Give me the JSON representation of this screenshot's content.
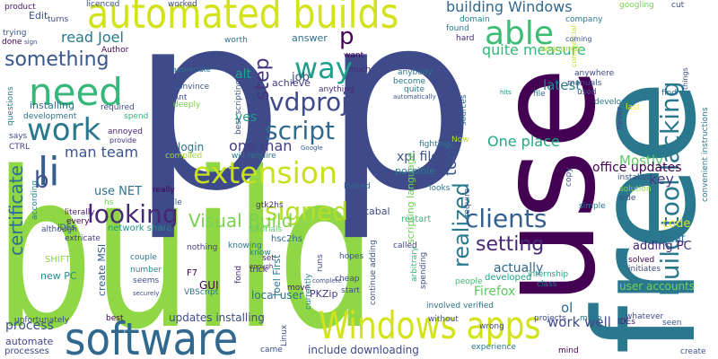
{
  "background": "#ffffff",
  "words": [
    {
      "text": "build",
      "color": "#8fd744"
    },
    {
      "text": "use",
      "color": "#440154"
    },
    {
      "text": "free",
      "color": "#2a788e"
    },
    {
      "text": "p",
      "color": "#3e4a89"
    },
    {
      "text": "p",
      "color": "#3e4a89"
    },
    {
      "text": "software",
      "color": "#31688e"
    },
    {
      "text": "automated builds",
      "color": "#d2e21b"
    },
    {
      "text": "need",
      "color": "#35b779"
    },
    {
      "text": "Windows apps",
      "color": "#d2e21b"
    },
    {
      "text": "build tool lacking",
      "color": "#2a788e"
    },
    {
      "text": "extension",
      "color": "#c8e020"
    },
    {
      "text": "able",
      "color": "#3dbc74"
    },
    {
      "text": "work",
      "color": "#2a788e"
    },
    {
      "text": "way",
      "color": "#1f9e89"
    },
    {
      "text": "li",
      "color": "#35608d"
    },
    {
      "text": "looking",
      "color": "#482677"
    },
    {
      "text": "clients",
      "color": "#35608d"
    },
    {
      "text": "vdproj",
      "color": "#3e4a89"
    },
    {
      "text": "script",
      "color": "#31688e"
    },
    {
      "text": "certificate",
      "color": "#2e6f8e"
    },
    {
      "text": "realized",
      "color": "#2a788e"
    },
    {
      "text": "signed",
      "color": "#b5de2b"
    },
    {
      "text": "step",
      "color": "#46337e"
    },
    {
      "text": "something",
      "color": "#39568c"
    },
    {
      "text": "Visual Build",
      "color": "#7ad151"
    },
    {
      "text": "setting",
      "color": "#482677"
    },
    {
      "text": "took",
      "color": "#39568c"
    },
    {
      "text": "b",
      "color": "#3b528b"
    },
    {
      "text": "p",
      "color": "#440154"
    },
    {
      "text": "read Joel",
      "color": "#2a788e"
    },
    {
      "text": "building Windows",
      "color": "#31688e"
    },
    {
      "text": "quite measure",
      "color": "#35b779"
    },
    {
      "text": "One place",
      "color": "#22a884"
    },
    {
      "text": "man team",
      "color": "#3b528b"
    },
    {
      "text": "one man",
      "color": "#433e85"
    },
    {
      "text": "process",
      "color": "#3b528b"
    },
    {
      "text": "latest",
      "color": "#26828e"
    },
    {
      "text": "work well",
      "color": "#3e4a89"
    },
    {
      "text": "Mostly",
      "color": "#5ec962"
    },
    {
      "text": "key",
      "color": "#453781"
    },
    {
      "text": "code",
      "color": "#e5e419"
    },
    {
      "text": "built",
      "color": "#2e6f8e"
    },
    {
      "text": "actually",
      "color": "#31688e"
    },
    {
      "text": "Firefox",
      "color": "#5ec962"
    },
    {
      "text": "adding PC",
      "color": "#482475"
    },
    {
      "text": "office updates",
      "color": "#440154"
    },
    {
      "text": "xpi file",
      "color": "#3b528b"
    },
    {
      "text": "job",
      "color": "#3e4a89"
    },
    {
      "text": "alt",
      "color": "#20a486"
    },
    {
      "text": "yes",
      "color": "#1f9e89"
    },
    {
      "text": "login",
      "color": "#2c728e"
    },
    {
      "text": "use NET",
      "color": "#2c728e"
    },
    {
      "text": "GUI",
      "color": "#440154"
    },
    {
      "text": "local user",
      "color": "#2c728e"
    },
    {
      "text": "updates installing",
      "color": "#3e4a89"
    },
    {
      "text": "include downloading",
      "color": "#3e4a89"
    },
    {
      "text": "user accounts",
      "color": "#73d056"
    },
    {
      "text": "Edit",
      "color": "#3b528b"
    },
    {
      "text": "installing",
      "color": "#2c728e"
    },
    {
      "text": "answer",
      "color": "#2c728e"
    },
    {
      "text": "achieve",
      "color": "#443a83"
    },
    {
      "text": "anything",
      "color": "#482878"
    },
    {
      "text": "cabal",
      "color": "#3e4a89"
    },
    {
      "text": "Joel First",
      "color": "#2a788e"
    },
    {
      "text": "create MSI",
      "color": "#35608d"
    },
    {
      "text": "PKZip",
      "color": "#443983"
    },
    {
      "text": "network share",
      "color": "#21918c"
    },
    {
      "text": "scripting language",
      "color": "#6ece58"
    },
    {
      "text": "possible",
      "color": "#2a788e"
    },
    {
      "text": "developed",
      "color": "#1fa088"
    },
    {
      "text": "automate",
      "color": "#404688"
    },
    {
      "text": "unfortunately",
      "color": "#3e4a89"
    },
    {
      "text": "processes",
      "color": "#3e4a89"
    },
    {
      "text": "VBScript",
      "color": "#2a788e"
    },
    {
      "text": "SHIFT",
      "color": "#8fd744"
    },
    {
      "text": "new PC",
      "color": "#228c8d"
    },
    {
      "text": "F7",
      "color": "#440154"
    },
    {
      "text": "hsc2hs",
      "color": "#31688e"
    },
    {
      "text": "gtk2hs",
      "color": "#46327e"
    },
    {
      "text": "restart",
      "color": "#38b977"
    },
    {
      "text": "fighting",
      "color": "#2a788e"
    },
    {
      "text": "Now",
      "color": "#b5de2b"
    },
    {
      "text": "looks",
      "color": "#2a788e"
    },
    {
      "text": "looked",
      "color": "#31688e"
    },
    {
      "text": "called",
      "color": "#414487"
    },
    {
      "text": "hopes",
      "color": "#3b528b"
    },
    {
      "text": "start",
      "color": "#3e4a89"
    },
    {
      "text": "move",
      "color": "#481a6c"
    },
    {
      "text": "trick",
      "color": "#482173"
    },
    {
      "text": "know",
      "color": "#287d8e"
    },
    {
      "text": "set",
      "color": "#482878"
    },
    {
      "text": "knowing",
      "color": "#2a788e"
    },
    {
      "text": "tutorials",
      "color": "#5ec962"
    },
    {
      "text": "nothing",
      "color": "#433e85"
    },
    {
      "text": "couple",
      "color": "#2a788e"
    },
    {
      "text": "number",
      "color": "#23898e"
    },
    {
      "text": "seems",
      "color": "#3b528b"
    },
    {
      "text": "IDEs",
      "color": "#3b528b"
    },
    {
      "text": "extricate",
      "color": "#453882"
    },
    {
      "text": "although",
      "color": "#3e4a89"
    },
    {
      "text": "every",
      "color": "#440154"
    },
    {
      "text": "literally",
      "color": "#481d6f"
    },
    {
      "text": "CTRL",
      "color": "#433e85"
    },
    {
      "text": "according",
      "color": "#26828e"
    },
    {
      "text": "says",
      "color": "#3b528b"
    },
    {
      "text": "questions",
      "color": "#2a788e"
    },
    {
      "text": "development",
      "color": "#2c728e"
    },
    {
      "text": "required",
      "color": "#3e4a89"
    },
    {
      "text": "spend",
      "color": "#35b779"
    },
    {
      "text": "annoyed",
      "color": "#481f70"
    },
    {
      "text": "provide",
      "color": "#46327e"
    },
    {
      "text": "hs",
      "color": "#6ece58"
    },
    {
      "text": "compiled",
      "color": "#a0da39"
    },
    {
      "text": "really",
      "color": "#440154"
    },
    {
      "text": "middle",
      "color": "#3b528b"
    },
    {
      "text": "best scripting",
      "color": "#3b528b"
    },
    {
      "text": "deeply",
      "color": "#7ad151"
    },
    {
      "text": "Ant",
      "color": "#3e4a89"
    },
    {
      "text": "convince",
      "color": "#39568c"
    },
    {
      "text": "appreciate",
      "color": "#2c728e"
    },
    {
      "text": "worth",
      "color": "#2e6f8e"
    },
    {
      "text": "Author",
      "color": "#440154"
    },
    {
      "text": "product",
      "color": "#481467"
    },
    {
      "text": "licenced",
      "color": "#3b528b"
    },
    {
      "text": "turns",
      "color": "#3e4a89"
    },
    {
      "text": "trying",
      "color": "#3b528b"
    },
    {
      "text": "done",
      "color": "#440154"
    },
    {
      "text": "sign",
      "color": "#3e4a89"
    },
    {
      "text": "worked",
      "color": "#3e4a89"
    },
    {
      "text": "want",
      "color": "#440154"
    },
    {
      "text": "much",
      "color": "#482878"
    },
    {
      "text": "anybody",
      "color": "#2a788e"
    },
    {
      "text": "become",
      "color": "#2a788e"
    },
    {
      "text": "quite",
      "color": "#2a788e"
    },
    {
      "text": "automatically",
      "color": "#3b528b"
    },
    {
      "text": "home",
      "color": "#3e4a89"
    },
    {
      "text": "domain",
      "color": "#26828e"
    },
    {
      "text": "found",
      "color": "#2a788e"
    },
    {
      "text": "hard",
      "color": "#482878"
    },
    {
      "text": "company",
      "color": "#2a788e"
    },
    {
      "text": "googling",
      "color": "#7ad151"
    },
    {
      "text": "cut",
      "color": "#3e4a89"
    },
    {
      "text": "commercial",
      "color": "#c2df23"
    },
    {
      "text": "things",
      "color": "#3b528b"
    },
    {
      "text": "coming",
      "color": "#3b528b"
    },
    {
      "text": "sequence",
      "color": "#b5de2b"
    },
    {
      "text": "anywhere",
      "color": "#3e4a89"
    },
    {
      "text": "manuals",
      "color": "#3b528b"
    },
    {
      "text": "used",
      "color": "#3b528b"
    },
    {
      "text": "develop",
      "color": "#2a788e"
    },
    {
      "text": "last",
      "color": "#fde725"
    },
    {
      "text": "find",
      "color": "#31688e"
    },
    {
      "text": "hits",
      "color": "#21918c"
    },
    {
      "text": "file",
      "color": "#2e6f8e"
    },
    {
      "text": "sources",
      "color": "#31688e"
    },
    {
      "text": "Google",
      "color": "#38598c"
    },
    {
      "text": "never",
      "color": "#3e4a89"
    },
    {
      "text": "installed",
      "color": "#3b528b"
    },
    {
      "text": "solution",
      "color": "#8fd744"
    },
    {
      "text": "side",
      "color": "#3e4a89"
    },
    {
      "text": "convenient instructions",
      "color": "#2a788e"
    },
    {
      "text": "simple",
      "color": "#2a788e"
    },
    {
      "text": "solved",
      "color": "#440154"
    },
    {
      "text": "copy",
      "color": "#3b528b"
    },
    {
      "text": "require",
      "color": "#3b528b"
    },
    {
      "text": "arbitrary",
      "color": "#38b977"
    },
    {
      "text": "spending",
      "color": "#3b528b"
    },
    {
      "text": "internship",
      "color": "#1f9e89"
    },
    {
      "text": "initiates",
      "color": "#3e4a89"
    },
    {
      "text": "class",
      "color": "#2c728e"
    },
    {
      "text": "people",
      "color": "#3dbc74"
    },
    {
      "text": "involved verified",
      "color": "#2c728e"
    },
    {
      "text": "wrong",
      "color": "#3e4a89"
    },
    {
      "text": "ol",
      "color": "#31688e"
    },
    {
      "text": "projects",
      "color": "#3e4a89"
    },
    {
      "text": "make",
      "color": "#2a788e"
    },
    {
      "text": "whatever",
      "color": "#3e4a89"
    },
    {
      "text": "seen",
      "color": "#3b528b"
    },
    {
      "text": "IDEs",
      "color": "#481a6c"
    },
    {
      "text": "come",
      "color": "#2a788e"
    },
    {
      "text": "mind",
      "color": "#440154"
    },
    {
      "text": "create",
      "color": "#3b528b"
    },
    {
      "text": "experience",
      "color": "#2a788e"
    },
    {
      "text": "without",
      "color": "#3b528b"
    },
    {
      "text": "runs",
      "color": "#3e4a89"
    },
    {
      "text": "complete",
      "color": "#3b528b"
    },
    {
      "text": "cheap",
      "color": "#3e4a89"
    },
    {
      "text": "Linux",
      "color": "#3e4a89"
    },
    {
      "text": "came",
      "color": "#3e4a89"
    },
    {
      "text": "currently",
      "color": "#26828e"
    },
    {
      "text": "continue adding",
      "color": "#3b528b"
    },
    {
      "text": "fond",
      "color": "#482878"
    },
    {
      "text": "enough",
      "color": "#46327e"
    },
    {
      "text": "securely",
      "color": "#3e4a89"
    },
    {
      "text": "best",
      "color": "#440154"
    },
    {
      "text": "will require",
      "color": "#2c728e"
    }
  ]
}
